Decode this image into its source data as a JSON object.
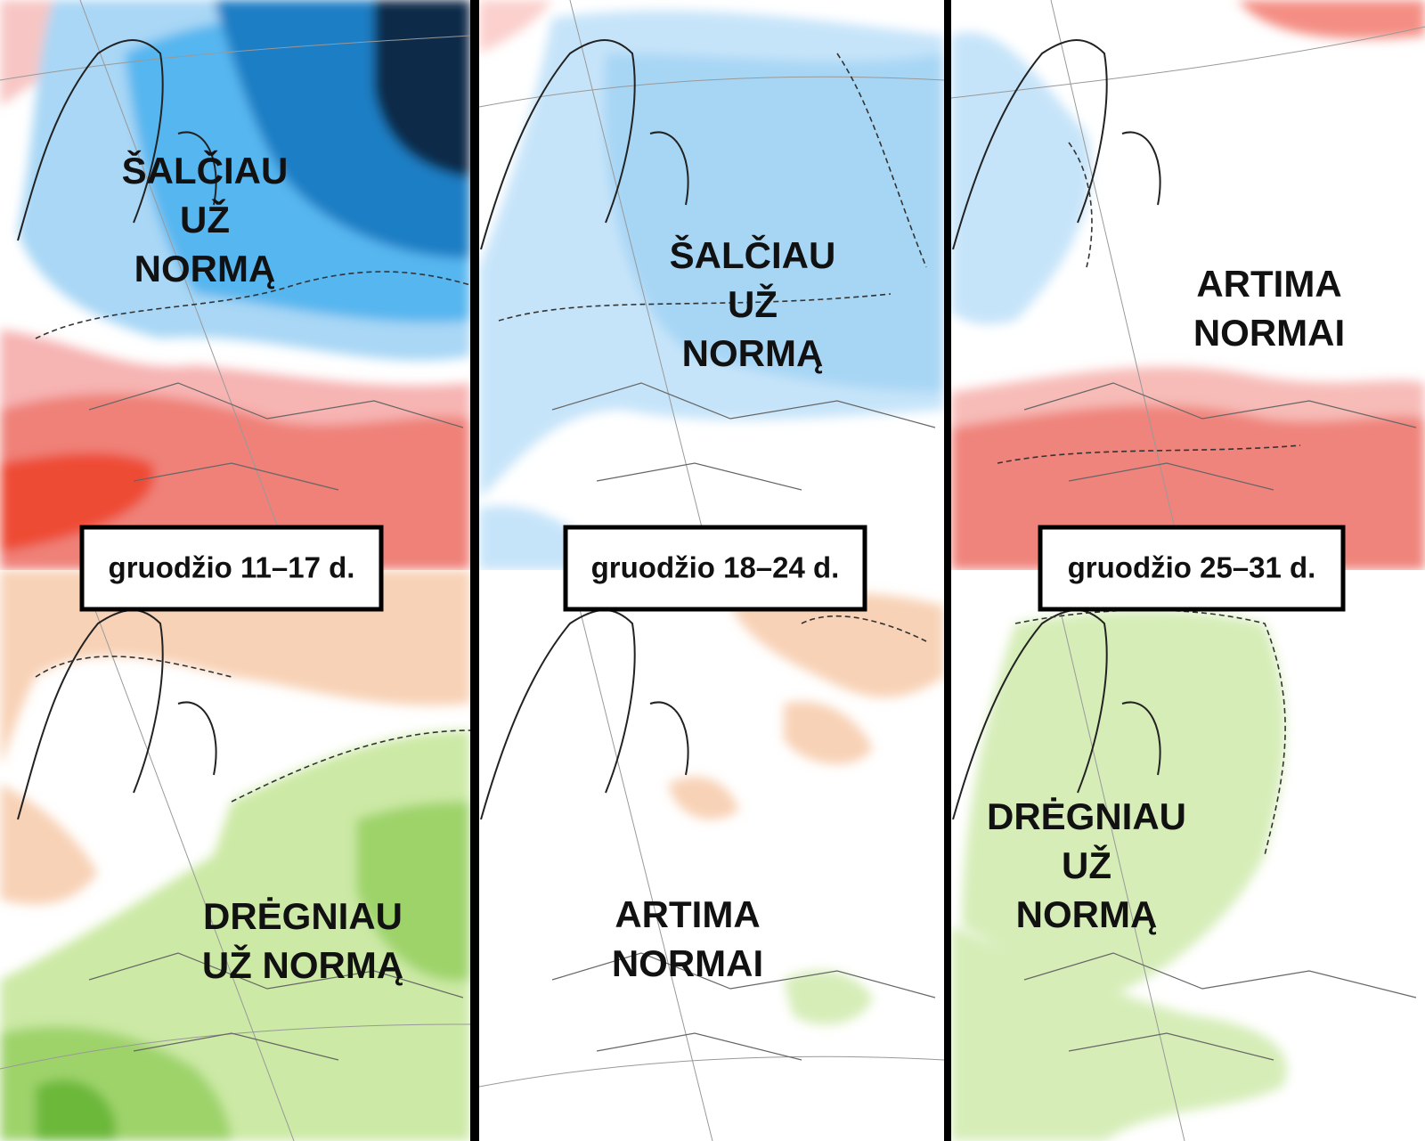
{
  "panels": [
    {
      "period": "gruodžio 11–17 d.",
      "temperature": [
        "ŠALČIAU",
        "UŽ",
        "NORMĄ"
      ],
      "precipitation": [
        "DRĖGNIAU",
        "UŽ NORMĄ"
      ]
    },
    {
      "period": "gruodžio 18–24 d.",
      "temperature": [
        "ŠALČIAU",
        "UŽ",
        "NORMĄ"
      ],
      "precipitation": [
        "ARTIMA",
        "NORMAI"
      ]
    },
    {
      "period": "gruodžio 25–31 d.",
      "temperature": [
        "ARTIMA",
        "NORMAI"
      ],
      "precipitation": [
        "DRĖGNIAU",
        "UŽ",
        "NORMĄ"
      ]
    }
  ]
}
